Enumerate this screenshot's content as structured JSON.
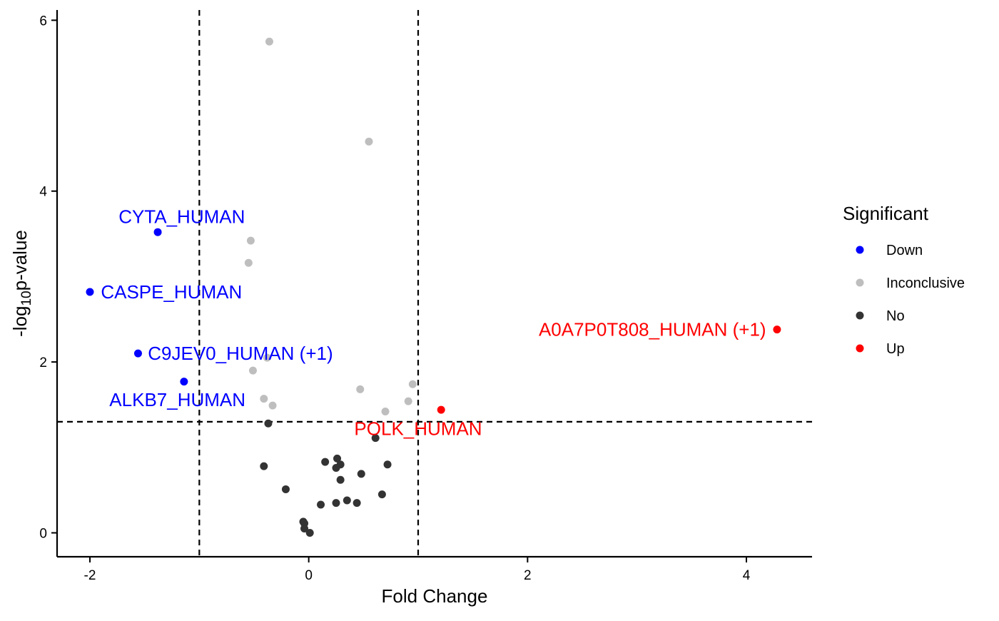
{
  "chart_data": {
    "type": "scatter",
    "xlabel": "Fold Change",
    "ylabel_prefix": "-log",
    "ylabel_subscript": "10",
    "ylabel_suffix": "p-value",
    "xlim": [
      -2.3,
      4.6
    ],
    "ylim": [
      -0.28,
      6.12
    ],
    "x_ticks": [
      -2,
      0,
      2,
      4
    ],
    "x_tick_labels": [
      "-2",
      "0",
      "2",
      "4"
    ],
    "y_ticks": [
      0,
      2,
      4,
      6
    ],
    "y_tick_labels": [
      "0",
      "2",
      "4",
      "6"
    ],
    "thresholds": {
      "x": [
        -1,
        1
      ],
      "y": [
        1.3
      ]
    },
    "grid": false,
    "legend": {
      "title": "Significant",
      "placement": "right",
      "entries": [
        {
          "label": "Down",
          "color": "#0000ff"
        },
        {
          "label": "Inconclusive",
          "color": "#bebebe"
        },
        {
          "label": "No",
          "color": "#333333"
        },
        {
          "label": "Up",
          "color": "#ff0000"
        }
      ]
    },
    "series": [
      {
        "name": "Down",
        "color": "#0000ff",
        "points": [
          {
            "x": -1.38,
            "y": 3.52
          },
          {
            "x": -2.0,
            "y": 2.82
          },
          {
            "x": -1.56,
            "y": 2.1
          },
          {
            "x": -1.14,
            "y": 1.77
          }
        ]
      },
      {
        "name": "Inconclusive",
        "color": "#bebebe",
        "points": [
          {
            "x": -0.36,
            "y": 5.75
          },
          {
            "x": 0.55,
            "y": 4.58
          },
          {
            "x": -0.53,
            "y": 3.42
          },
          {
            "x": -0.55,
            "y": 3.16
          },
          {
            "x": -0.38,
            "y": 2.05
          },
          {
            "x": -0.51,
            "y": 1.9
          },
          {
            "x": 0.47,
            "y": 1.68
          },
          {
            "x": 0.95,
            "y": 1.74
          },
          {
            "x": -0.41,
            "y": 1.57
          },
          {
            "x": -0.33,
            "y": 1.49
          },
          {
            "x": 0.91,
            "y": 1.54
          },
          {
            "x": 0.7,
            "y": 1.42
          }
        ]
      },
      {
        "name": "No",
        "color": "#333333",
        "points": [
          {
            "x": -0.37,
            "y": 1.28
          },
          {
            "x": 0.61,
            "y": 1.11
          },
          {
            "x": 0.26,
            "y": 0.87
          },
          {
            "x": 0.15,
            "y": 0.83
          },
          {
            "x": 0.29,
            "y": 0.8
          },
          {
            "x": 0.25,
            "y": 0.76
          },
          {
            "x": 0.72,
            "y": 0.8
          },
          {
            "x": -0.41,
            "y": 0.78
          },
          {
            "x": 0.48,
            "y": 0.69
          },
          {
            "x": 0.29,
            "y": 0.62
          },
          {
            "x": -0.21,
            "y": 0.51
          },
          {
            "x": 0.67,
            "y": 0.45
          },
          {
            "x": 0.35,
            "y": 0.38
          },
          {
            "x": 0.44,
            "y": 0.35
          },
          {
            "x": 0.25,
            "y": 0.35
          },
          {
            "x": 0.11,
            "y": 0.33
          },
          {
            "x": -0.05,
            "y": 0.13
          },
          {
            "x": -0.04,
            "y": 0.11
          },
          {
            "x": -0.04,
            "y": 0.05
          },
          {
            "x": 0.01,
            "y": 0.0
          }
        ]
      },
      {
        "name": "Up",
        "color": "#ff0000",
        "points": [
          {
            "x": 4.28,
            "y": 2.38
          },
          {
            "x": 1.21,
            "y": 1.44
          }
        ]
      }
    ],
    "annotations": [
      {
        "text": "CYTA_HUMAN",
        "x": -1.16,
        "y": 3.7,
        "anchor": "middle",
        "color": "#0000ff"
      },
      {
        "text": "CASPE_HUMAN",
        "x": -1.9,
        "y": 2.82,
        "anchor": "start",
        "color": "#0000ff"
      },
      {
        "text": "C9JEV0_HUMAN (+1)",
        "x": -1.47,
        "y": 2.1,
        "anchor": "start",
        "color": "#0000ff"
      },
      {
        "text": "ALKB7_HUMAN",
        "x": -1.2,
        "y": 1.56,
        "anchor": "middle",
        "color": "#0000ff"
      },
      {
        "text": "A0A7P0T808_HUMAN (+1)",
        "x": 4.18,
        "y": 2.38,
        "anchor": "end",
        "color": "#ff0000"
      },
      {
        "text": "POLK_HUMAN",
        "x": 1.0,
        "y": 1.22,
        "anchor": "middle",
        "color": "#ff0000"
      }
    ]
  }
}
